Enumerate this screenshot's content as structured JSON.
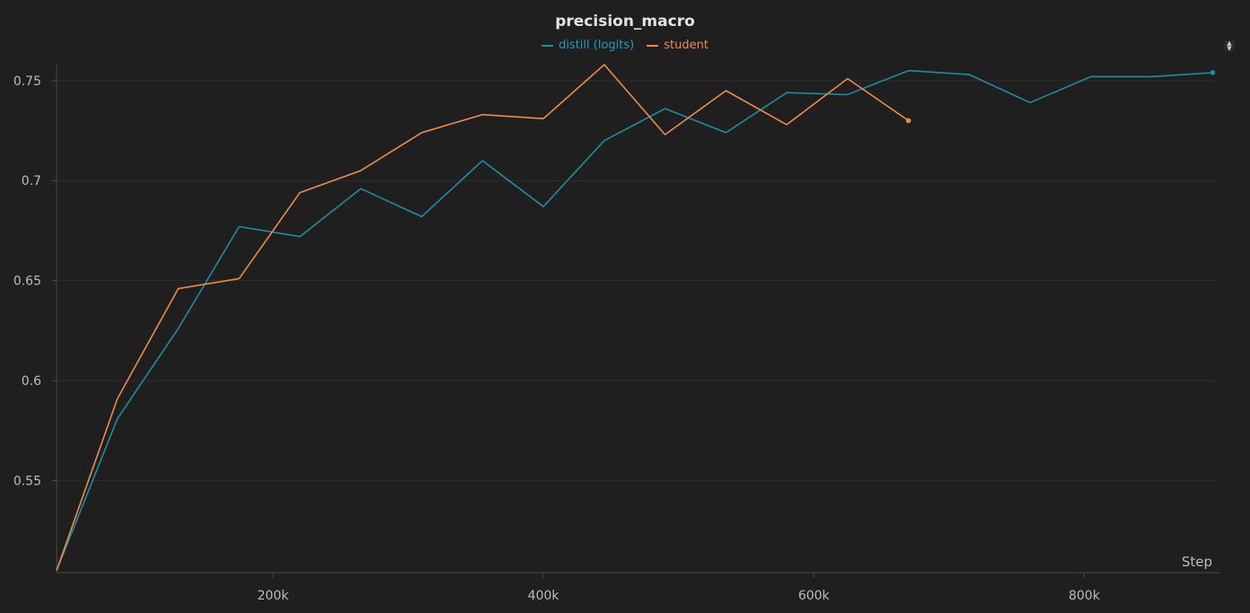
{
  "chart_data": {
    "type": "line",
    "title": "precision_macro",
    "xlabel": "Step",
    "ylabel": "",
    "xlim": [
      40000,
      900000
    ],
    "ylim": [
      0.504,
      0.758
    ],
    "x_ticks": [
      200000,
      400000,
      600000,
      800000
    ],
    "x_tick_labels": [
      "200k",
      "400k",
      "600k",
      "800k"
    ],
    "y_ticks": [
      0.55,
      0.6,
      0.65,
      0.7,
      0.75
    ],
    "y_tick_labels": [
      "0.55",
      "0.6",
      "0.65",
      "0.7",
      "0.75"
    ],
    "grid": true,
    "legend_position": "top-center",
    "series": [
      {
        "name": "distill (logits)",
        "color": "#1f8ca3",
        "x": [
          40000,
          85000,
          130000,
          175000,
          220000,
          265000,
          310000,
          355000,
          400000,
          445000,
          490000,
          535000,
          580000,
          625000,
          670000,
          715000,
          760000,
          805000,
          850000,
          895000
        ],
        "values": [
          0.505,
          0.581,
          0.626,
          0.677,
          0.672,
          0.696,
          0.682,
          0.71,
          0.687,
          0.72,
          0.736,
          0.724,
          0.744,
          0.743,
          0.755,
          0.753,
          0.739,
          0.752,
          0.752,
          0.754
        ]
      },
      {
        "name": "student",
        "color": "#f08a4b",
        "x": [
          40000,
          85000,
          130000,
          175000,
          220000,
          265000,
          310000,
          355000,
          400000,
          445000,
          490000,
          535000,
          580000,
          625000,
          670000
        ],
        "values": [
          0.505,
          0.591,
          0.646,
          0.651,
          0.694,
          0.705,
          0.724,
          0.733,
          0.731,
          0.758,
          0.723,
          0.745,
          0.728,
          0.751,
          0.73
        ]
      }
    ]
  },
  "ui": {
    "scroll_icon": "up-down-chevron-icon"
  }
}
